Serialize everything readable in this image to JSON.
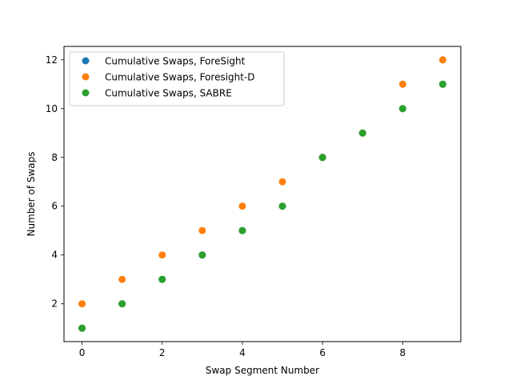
{
  "chart_data": {
    "type": "scatter",
    "title": "",
    "xlabel": "Swap Segment Number",
    "ylabel": "Number of Swaps",
    "xlim": [
      -0.45,
      9.45
    ],
    "ylim": [
      0.45,
      12.55
    ],
    "xticks": [
      0,
      2,
      4,
      6,
      8
    ],
    "yticks": [
      2,
      4,
      6,
      8,
      10,
      12
    ],
    "grid": false,
    "legend_position": "top-left",
    "x": [
      0,
      1,
      2,
      3,
      4,
      5,
      6,
      7,
      8,
      9
    ],
    "series": [
      {
        "name": "Cumulative Swaps, ForeSight",
        "color": "#1f77b4",
        "values": [
          1,
          2,
          3,
          4,
          5,
          6,
          8,
          9,
          10,
          11
        ]
      },
      {
        "name": "Cumulative Swaps, Foresight-D",
        "color": "#ff7f0e",
        "values": [
          2,
          3,
          4,
          5,
          6,
          7,
          8,
          9,
          11,
          12
        ]
      },
      {
        "name": "Cumulative Swaps, SABRE",
        "color": "#2ca02c",
        "values": [
          1,
          2,
          3,
          4,
          5,
          6,
          8,
          9,
          10,
          11
        ]
      }
    ]
  }
}
